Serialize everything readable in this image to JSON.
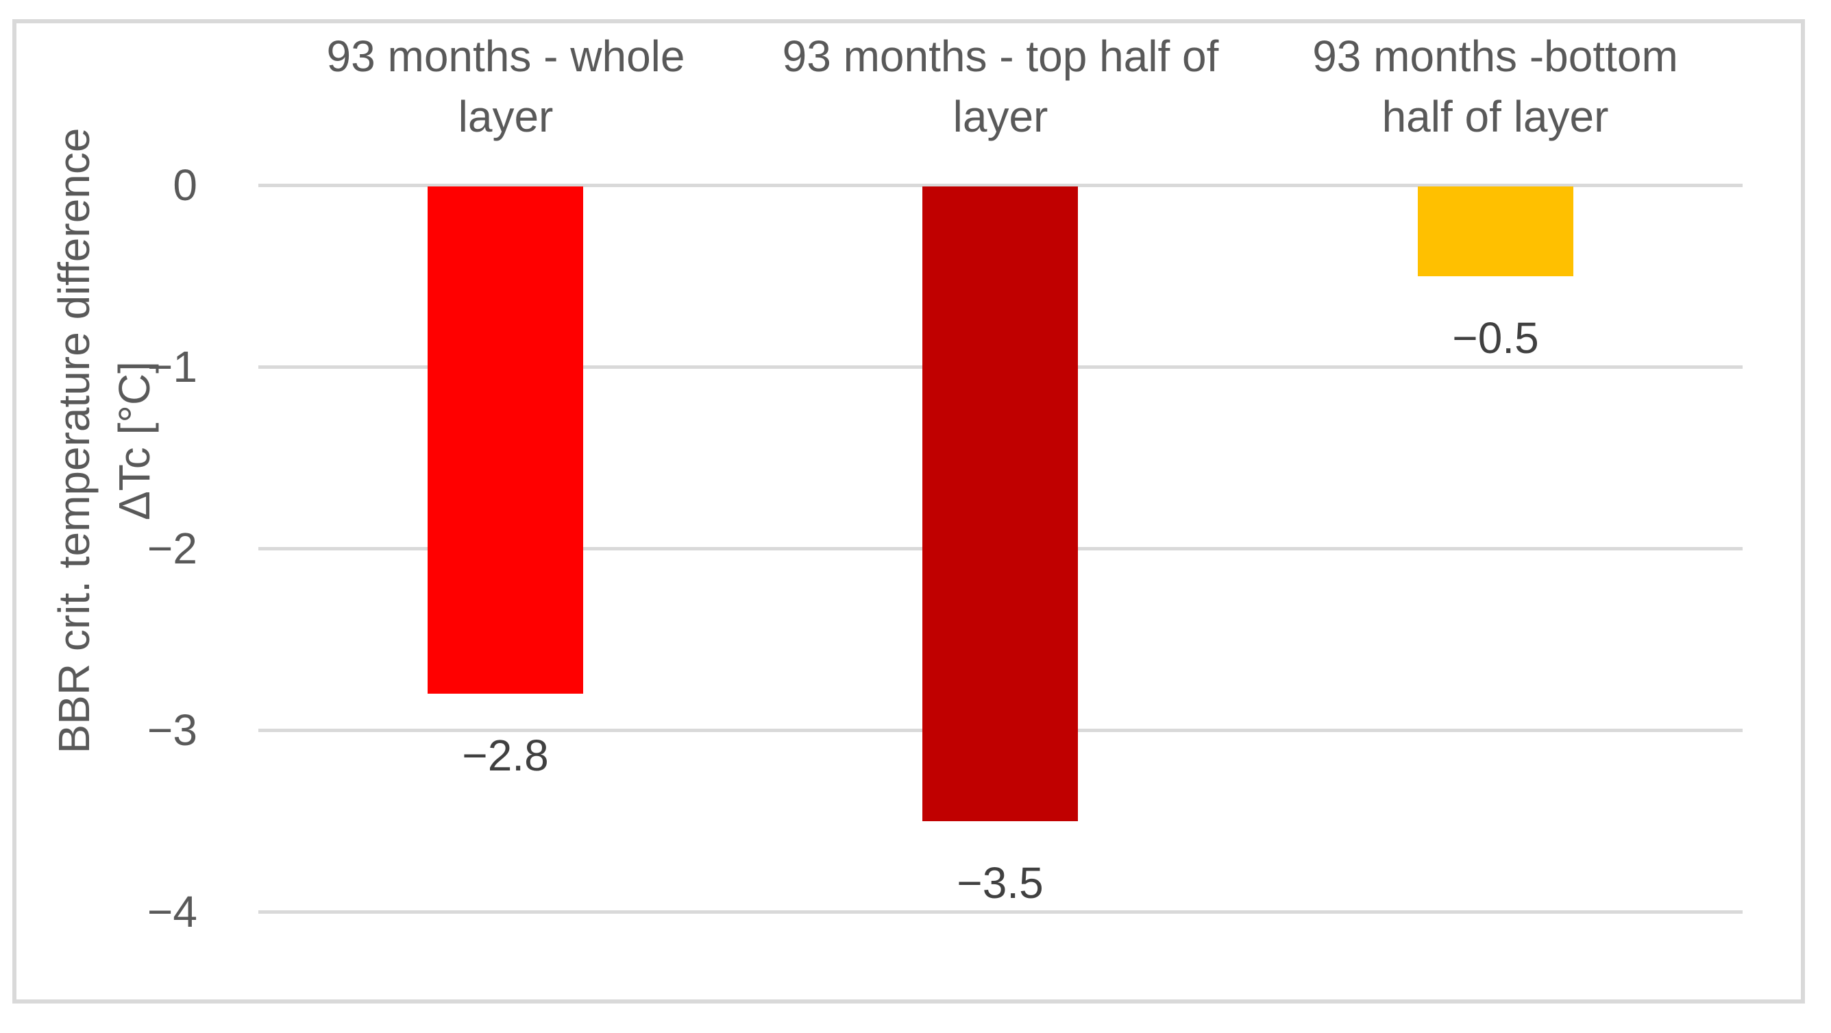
{
  "figure": {
    "background_color": "#FFFFFF",
    "border_color": "#D9D9D9",
    "grid_color": "#D9D9D9",
    "axis_text_color": "#595959",
    "data_label_color": "#404040"
  },
  "chart_data": {
    "type": "bar",
    "title": "",
    "xlabel": "",
    "ylabel": "BBR crit. temperature difference ΔTc [°C]",
    "ylabel_lines": [
      "BBR crit. temperature difference",
      "ΔTc [°C]"
    ],
    "categories": [
      "93 months - whole layer",
      "93 months - top half of layer",
      "93 months -bottom half of layer"
    ],
    "category_lines": [
      [
        "93 months - whole",
        "layer"
      ],
      [
        "93 months - top half of",
        "layer"
      ],
      [
        "93 months -bottom",
        "half of layer"
      ]
    ],
    "values": [
      -2.8,
      -3.5,
      -0.5
    ],
    "data_labels": [
      "−2.8",
      "−3.5",
      "−0.5"
    ],
    "bar_colors": [
      "#FF0000",
      "#C00000",
      "#FFC000"
    ],
    "ytick_labels": [
      "0",
      "−1",
      "−2",
      "−3",
      "−4"
    ],
    "ytick_values": [
      0,
      -1,
      -2,
      -3,
      -4
    ],
    "ylim": [
      -4.5,
      0
    ],
    "grid": true,
    "legend": "none",
    "category_labels_position": "top"
  }
}
